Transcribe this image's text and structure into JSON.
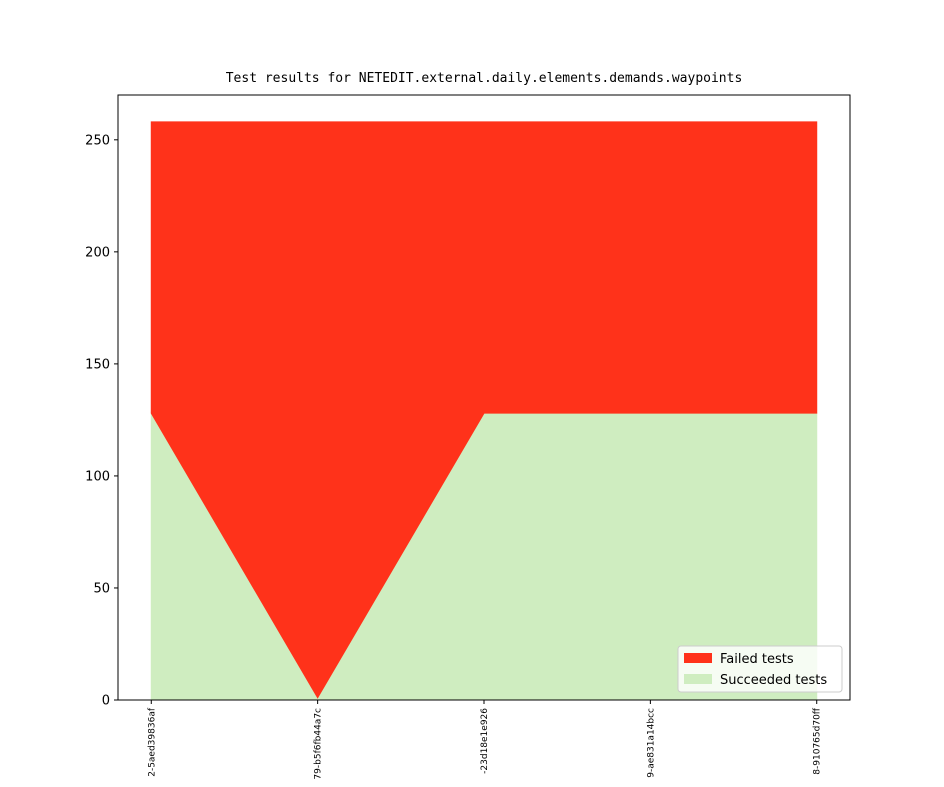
{
  "chart_data": {
    "type": "stacked_area",
    "title": "Test results for NETEDIT.external.daily.elements.demands.waypoints",
    "categories": [
      "2-5aed39836af",
      "79-b5f6fb44a7c",
      "-23d18e1e926",
      "9-ae831a14bcc",
      "8-910765d70ff"
    ],
    "series": [
      {
        "name": "Succeeded tests",
        "color": "#cfedc0",
        "values": [
          128,
          1,
          128,
          128,
          128
        ]
      },
      {
        "name": "Failed tests",
        "color": "#ff321a",
        "values": [
          130,
          257,
          130,
          130,
          130
        ]
      }
    ],
    "ylim": [
      0,
      270
    ],
    "yticks": [
      0,
      50,
      100,
      150,
      200,
      250
    ],
    "legend": "lower right"
  }
}
